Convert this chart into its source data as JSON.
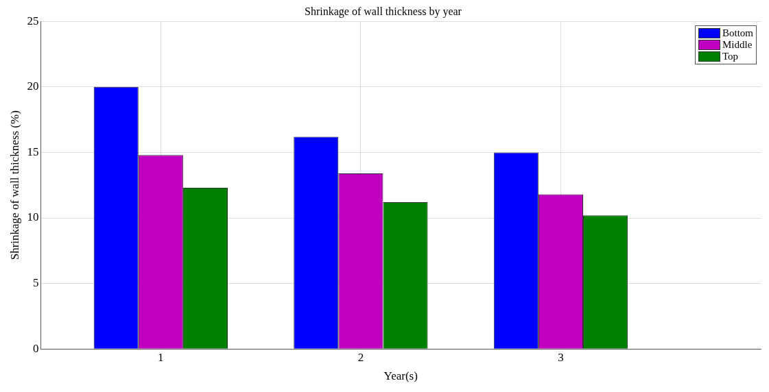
{
  "chart_data": {
    "type": "bar",
    "title": "Shrinkage of wall thickness by year",
    "xlabel": "Year(s)",
    "ylabel": "Shrinkage of wall thickness (%)",
    "x": [
      1,
      2,
      3
    ],
    "xlim": [
      0.4,
      4
    ],
    "xticks": [
      1,
      2,
      3
    ],
    "ylim": [
      0,
      25
    ],
    "yticks": [
      0,
      5,
      10,
      15,
      20,
      25
    ],
    "series": [
      {
        "name": "Bottom",
        "color": "#0000ff",
        "values": [
          20.0,
          16.2,
          15.0
        ]
      },
      {
        "name": "Middle",
        "color": "#bf00bf",
        "values": [
          14.8,
          13.4,
          11.8
        ]
      },
      {
        "name": "Top",
        "color": "#008000",
        "values": [
          12.3,
          11.2,
          10.2
        ]
      }
    ],
    "grid": true,
    "legend": "top right"
  }
}
